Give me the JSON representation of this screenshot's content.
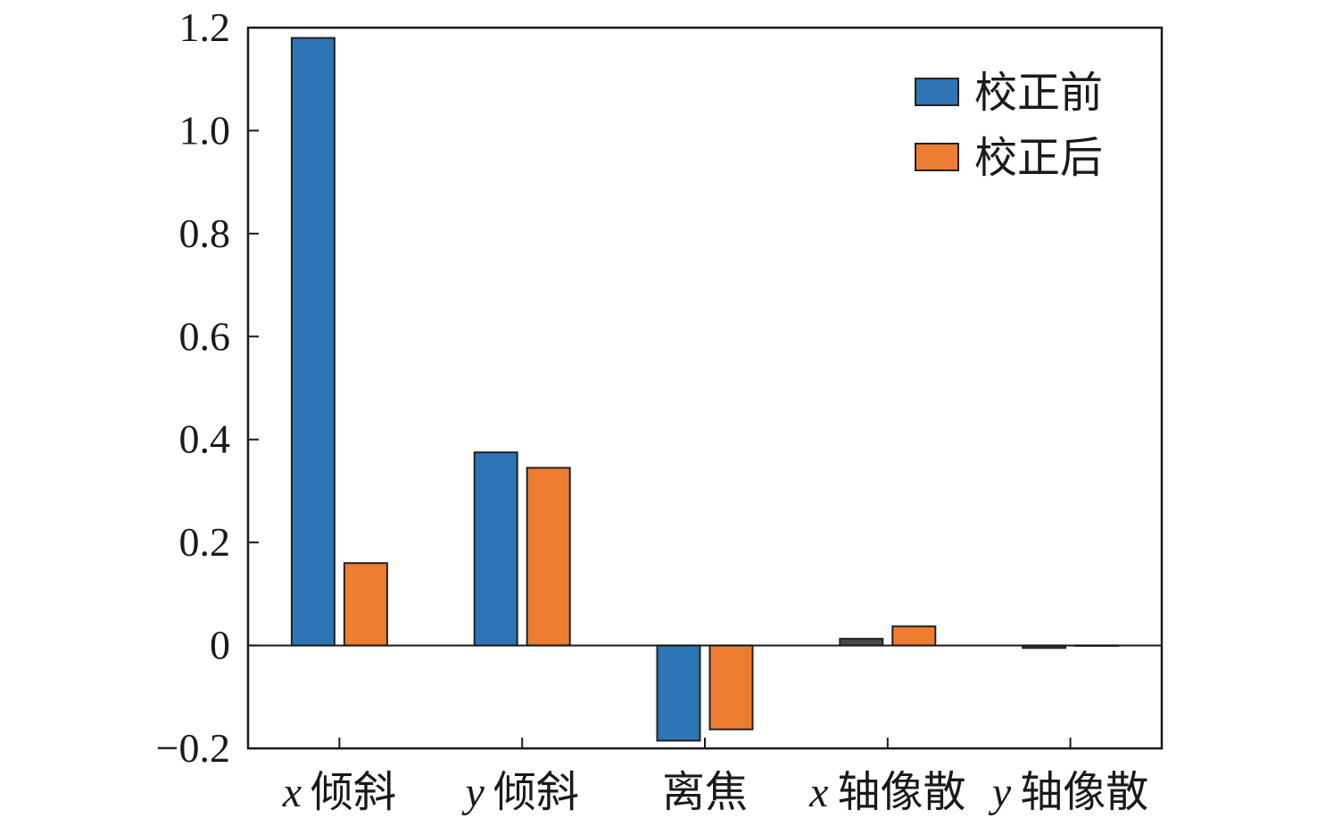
{
  "chart_data": {
    "type": "bar",
    "categories": [
      "x 倾斜",
      "y 倾斜",
      "离焦",
      "x 轴像散",
      "y 轴像散"
    ],
    "category_parts": [
      {
        "var": "x",
        "text": "倾斜"
      },
      {
        "var": "y",
        "text": "倾斜"
      },
      {
        "var": "",
        "text": "离焦"
      },
      {
        "var": "x",
        "text": "轴像散"
      },
      {
        "var": "y",
        "text": "轴像散"
      }
    ],
    "series": [
      {
        "name": "校正前",
        "color": "#2e75b6",
        "values": [
          1.18,
          0.375,
          -0.185,
          0.013,
          -0.005
        ]
      },
      {
        "name": "校正后",
        "color": "#ed7d31",
        "values": [
          0.16,
          0.345,
          -0.163,
          0.037,
          0.0
        ]
      }
    ],
    "ylim": [
      -0.2,
      1.2
    ],
    "yticks": [
      -0.2,
      0,
      0.2,
      0.4,
      0.6,
      0.8,
      1.0,
      1.2
    ],
    "ytick_labels": [
      "−0.2",
      "0",
      "0.2",
      "0.4",
      "0.6",
      "0.8",
      "1.0",
      "1.2"
    ],
    "title": "",
    "xlabel": "",
    "ylabel": "",
    "legend_position": "top-right",
    "grid": false
  }
}
